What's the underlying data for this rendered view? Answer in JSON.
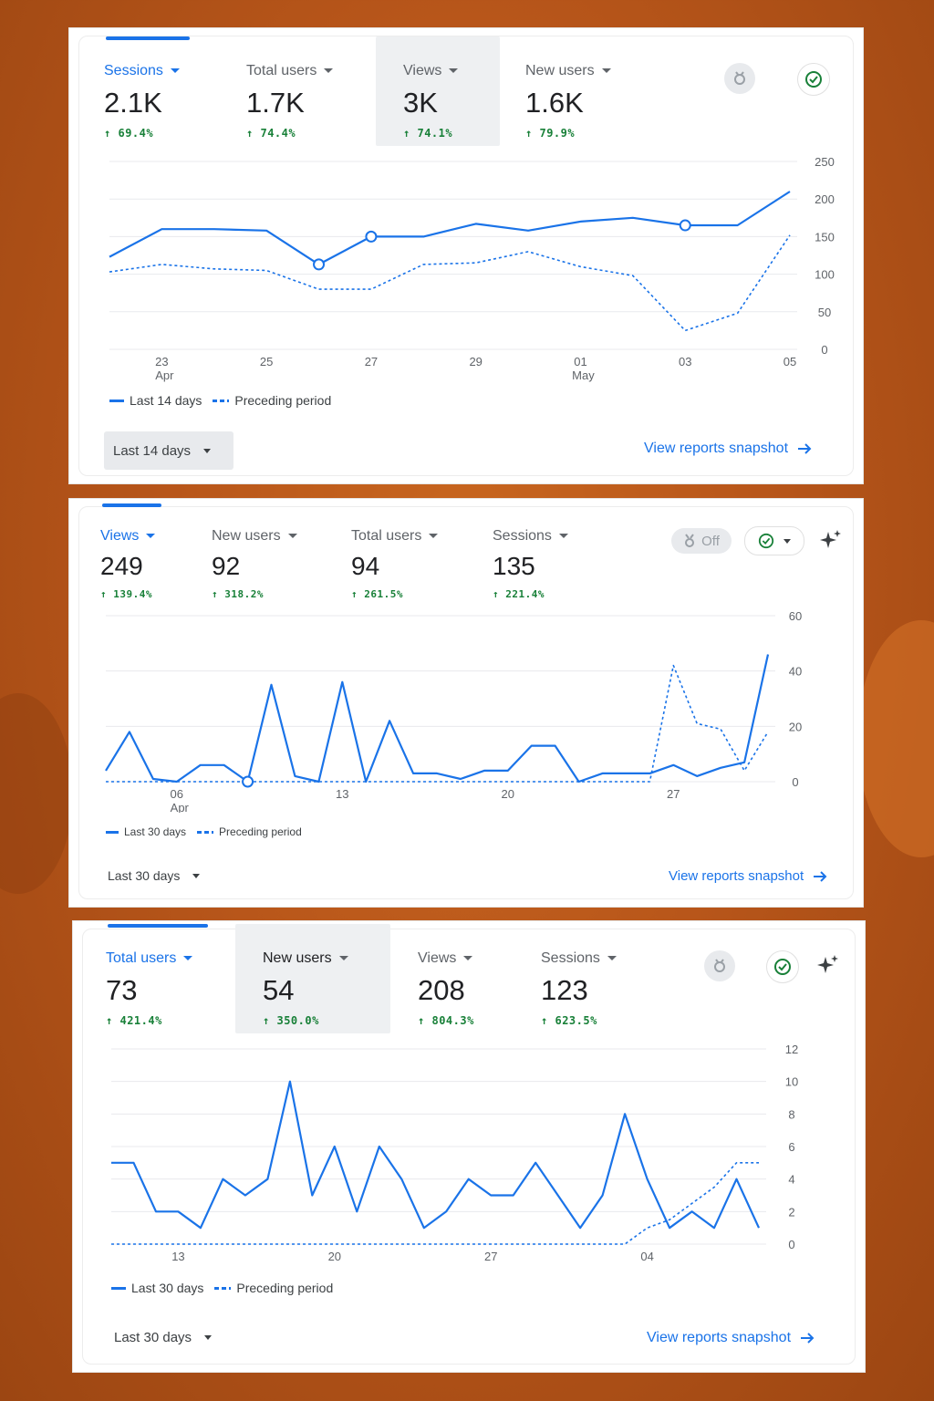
{
  "cards": [
    {
      "metrics": [
        {
          "label": "Sessions",
          "value": "2.1K",
          "change": "69.4%"
        },
        {
          "label": "Total users",
          "value": "1.7K",
          "change": "74.4%"
        },
        {
          "label": "Views",
          "value": "3K",
          "change": "74.1%"
        },
        {
          "label": "New users",
          "value": "1.6K",
          "change": "79.9%"
        }
      ],
      "legend": {
        "current": "Last 14 days",
        "previous": "Preceding period"
      },
      "range_label": "Last 14 days",
      "view_link": "View reports snapshot"
    },
    {
      "metrics": [
        {
          "label": "Views",
          "value": "249",
          "change": "139.4%"
        },
        {
          "label": "New users",
          "value": "92",
          "change": "318.2%"
        },
        {
          "label": "Total users",
          "value": "94",
          "change": "261.5%"
        },
        {
          "label": "Sessions",
          "value": "135",
          "change": "221.4%"
        }
      ],
      "toggle_label": "Off",
      "legend": {
        "current": "Last 30 days",
        "previous": "Preceding period"
      },
      "range_label": "Last 30 days",
      "view_link": "View reports snapshot"
    },
    {
      "metrics": [
        {
          "label": "Total users",
          "value": "73",
          "change": "421.4%"
        },
        {
          "label": "New users",
          "value": "54",
          "change": "350.0%"
        },
        {
          "label": "Views",
          "value": "208",
          "change": "804.3%"
        },
        {
          "label": "Sessions",
          "value": "123",
          "change": "623.5%"
        }
      ],
      "legend": {
        "current": "Last 30 days",
        "previous": "Preceding period"
      },
      "range_label": "Last 30 days",
      "view_link": "View reports snapshot"
    }
  ],
  "chart_data": [
    {
      "type": "line",
      "ylim": [
        0,
        250
      ],
      "yticks": [
        0,
        50,
        100,
        150,
        200,
        250
      ],
      "xticks": [
        {
          "x": 1,
          "label": "23",
          "sublabel": "Apr"
        },
        {
          "x": 3,
          "label": "25",
          "sublabel": ""
        },
        {
          "x": 5,
          "label": "27",
          "sublabel": ""
        },
        {
          "x": 7,
          "label": "29",
          "sublabel": ""
        },
        {
          "x": 9,
          "label": "01",
          "sublabel": "May"
        },
        {
          "x": 11,
          "label": "03",
          "sublabel": ""
        },
        {
          "x": 13,
          "label": "05",
          "sublabel": ""
        }
      ],
      "series": [
        {
          "name": "Last 14 days",
          "style": "solid",
          "values": [
            123,
            160,
            160,
            158,
            113,
            150,
            150,
            167,
            158,
            170,
            175,
            165,
            165,
            210
          ]
        },
        {
          "name": "Preceding period",
          "style": "dashed",
          "values": [
            103,
            113,
            107,
            105,
            80,
            80,
            113,
            115,
            130,
            110,
            98,
            25,
            48,
            152
          ]
        }
      ],
      "markers": [
        4,
        5,
        11
      ]
    },
    {
      "type": "line",
      "ylim": [
        0,
        60
      ],
      "yticks": [
        0,
        20,
        40,
        60
      ],
      "xticks": [
        {
          "x": 3,
          "label": "06",
          "sublabel": "Apr"
        },
        {
          "x": 10,
          "label": "13",
          "sublabel": ""
        },
        {
          "x": 17,
          "label": "20",
          "sublabel": ""
        },
        {
          "x": 24,
          "label": "27",
          "sublabel": ""
        }
      ],
      "series": [
        {
          "name": "Last 30 days",
          "style": "solid",
          "values": [
            4,
            18,
            1,
            0,
            6,
            6,
            0,
            35,
            2,
            0,
            36,
            0,
            22,
            3,
            3,
            1,
            4,
            4,
            13,
            13,
            0,
            3,
            3,
            3,
            6,
            2,
            5,
            7,
            46
          ]
        },
        {
          "name": "Preceding period",
          "style": "dashed",
          "values": [
            0,
            0,
            0,
            0,
            0,
            0,
            0,
            0,
            0,
            0,
            0,
            0,
            0,
            0,
            0,
            0,
            0,
            0,
            0,
            0,
            0,
            0,
            0,
            0,
            42,
            21,
            19,
            4,
            18
          ]
        }
      ],
      "markers": [
        6
      ]
    },
    {
      "type": "line",
      "ylim": [
        0,
        12
      ],
      "yticks": [
        0,
        2,
        4,
        6,
        8,
        10,
        12
      ],
      "xticks": [
        {
          "x": 3,
          "label": "13",
          "sublabel": "Apr"
        },
        {
          "x": 10,
          "label": "20",
          "sublabel": ""
        },
        {
          "x": 17,
          "label": "27",
          "sublabel": ""
        },
        {
          "x": 24,
          "label": "04",
          "sublabel": "May"
        }
      ],
      "series": [
        {
          "name": "Last 30 days",
          "style": "solid",
          "values": [
            5,
            5,
            2,
            2,
            1,
            4,
            3,
            4,
            10,
            3,
            6,
            2,
            6,
            4,
            1,
            2,
            4,
            3,
            3,
            5,
            3,
            1,
            3,
            8,
            4,
            1,
            2,
            1,
            4,
            1
          ]
        },
        {
          "name": "Preceding period",
          "style": "dashed",
          "values": [
            0,
            0,
            0,
            0,
            0,
            0,
            0,
            0,
            0,
            0,
            0,
            0,
            0,
            0,
            0,
            0,
            0,
            0,
            0,
            0,
            0,
            0,
            0,
            0,
            1,
            1.5,
            2.5,
            3.5,
            5,
            5
          ]
        }
      ],
      "markers": []
    }
  ]
}
